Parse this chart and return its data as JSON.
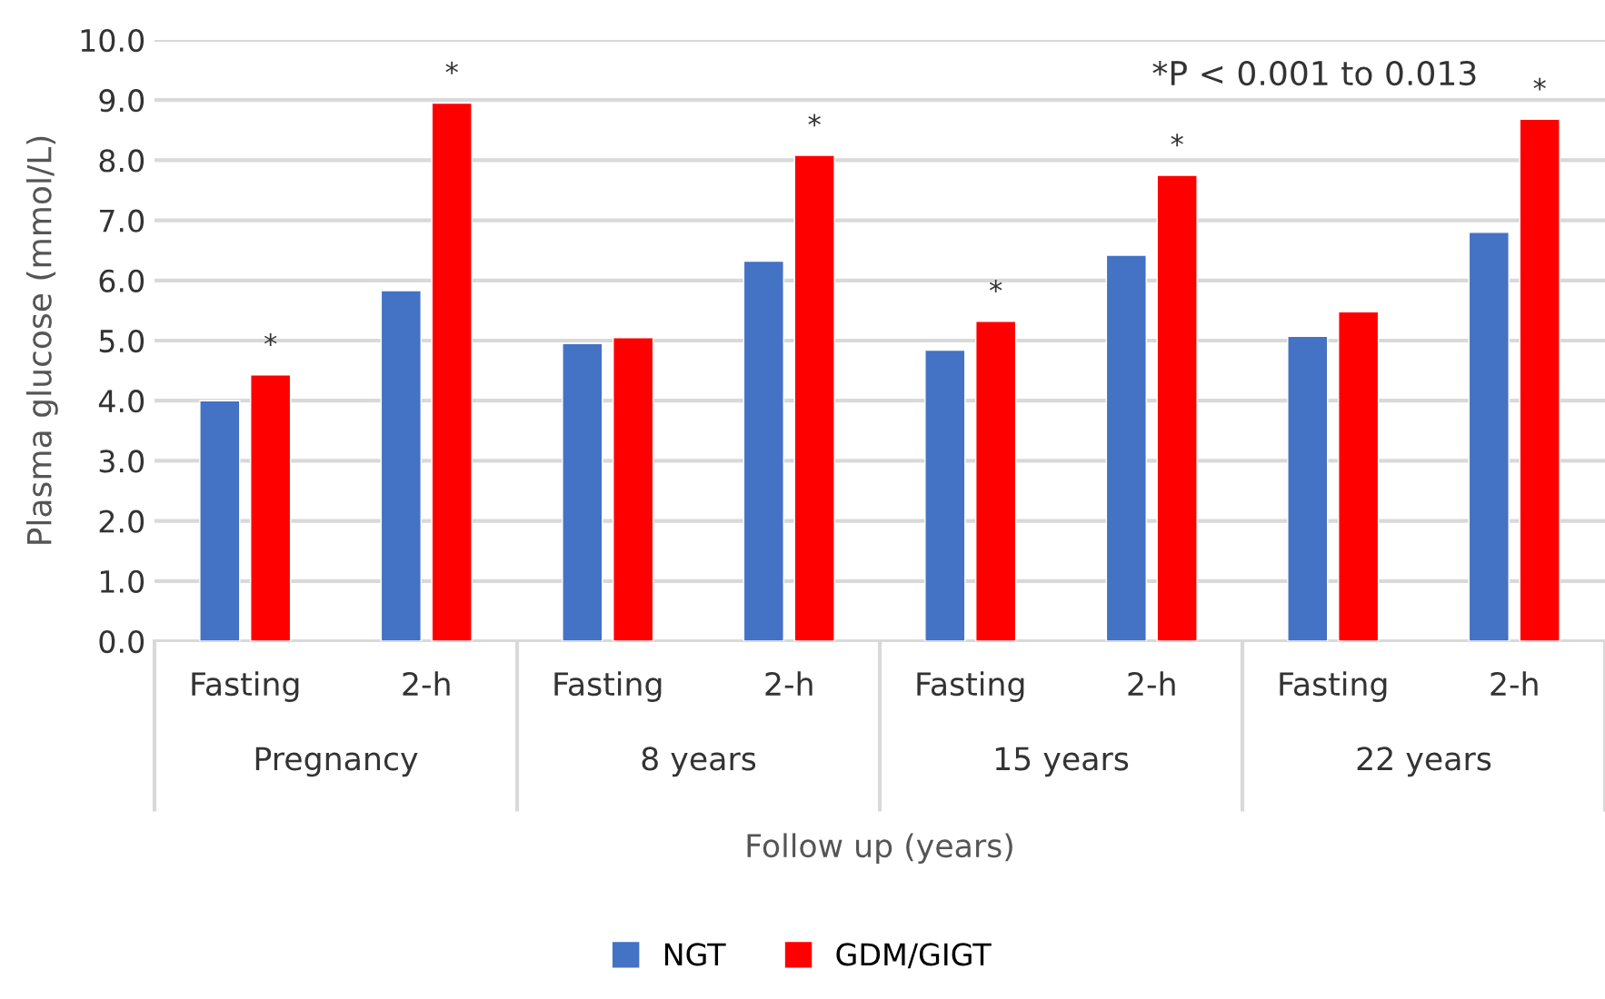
{
  "chart_data": {
    "type": "bar",
    "ylabel": "Plasma glucose (mmol/L)",
    "xlabel": "Follow up (years)",
    "categories": [
      "Fasting",
      "2-h",
      "Fasting",
      "2-h",
      "Fasting",
      "2-h",
      "Fasting",
      "2-h"
    ],
    "series": [
      {
        "name": "NGT",
        "color": "#4472c4",
        "values": [
          4.0,
          5.83,
          4.95,
          6.32,
          4.84,
          6.42,
          5.07,
          6.8
        ]
      },
      {
        "name": "GDM/GIGT",
        "color": "#ff0000",
        "values": [
          4.43,
          8.95,
          5.05,
          8.08,
          5.32,
          7.75,
          5.48,
          8.68
        ],
        "value_labels": [
          "*",
          "*",
          null,
          "*",
          "*",
          "*",
          null,
          "*"
        ]
      }
    ],
    "ylim": [
      0,
      10
    ],
    "yticks": [
      {
        "value": 0,
        "label": "0.0"
      },
      {
        "value": 1,
        "label": "1.0"
      },
      {
        "value": 2,
        "label": "2.0"
      },
      {
        "value": 3,
        "label": "3.0"
      },
      {
        "value": 4,
        "label": "4.0"
      },
      {
        "value": 5,
        "label": "5.0"
      },
      {
        "value": 6,
        "label": "6.0"
      },
      {
        "value": 7,
        "label": "7.0"
      },
      {
        "value": 8,
        "label": "8.0"
      },
      {
        "value": 9,
        "label": "9.0"
      },
      {
        "value": 10,
        "label": "10.0"
      }
    ],
    "grid": "y",
    "legend": "bottom",
    "annotations": [
      "Pregnancy",
      "8 years",
      "15 years",
      "22 years",
      "*P < 0.001 to 0.013"
    ]
  }
}
